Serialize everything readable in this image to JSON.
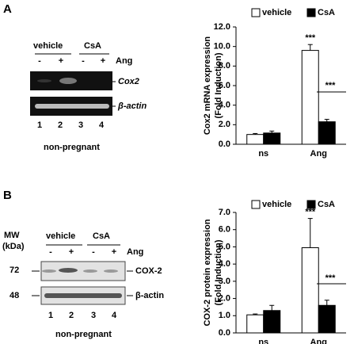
{
  "gel_panels": [
    {
      "label": "A",
      "groups": [
        "vehicle",
        "CsA"
      ],
      "signs": [
        "-",
        "+",
        "-",
        "+"
      ],
      "treatment": "Ang",
      "bands": [
        "Cox2",
        "β-actin"
      ],
      "lanes": [
        1,
        2,
        3,
        4
      ],
      "caption": "non-pregnant"
    },
    {
      "label": "B",
      "mw_label": [
        "MW",
        "(kDa)"
      ],
      "mw": [
        72,
        48
      ],
      "groups": [
        "vehicle",
        "CsA"
      ],
      "signs": [
        "-",
        "+",
        "-",
        "+"
      ],
      "treatment": "Ang",
      "bands": [
        "COX-2",
        "β-actin"
      ],
      "lanes": [
        1,
        2,
        3,
        4
      ],
      "caption": "non-pregnant"
    }
  ],
  "chart_data": [
    {
      "type": "bar",
      "ylabel": [
        "Cox2 mRNA expression",
        "(Fold Induction)"
      ],
      "categories": [
        "ns",
        "Ang"
      ],
      "series": [
        {
          "name": "vehicle",
          "color": "#ffffff",
          "values": [
            1.0,
            9.6
          ],
          "errors": [
            0.1,
            0.6
          ]
        },
        {
          "name": "CsA",
          "color": "#000000",
          "values": [
            1.15,
            2.3
          ],
          "errors": [
            0.2,
            0.25
          ]
        }
      ],
      "ylim": [
        0,
        12
      ],
      "yticks": [
        {
          "value": 0,
          "label": "0.0"
        },
        {
          "value": 2,
          "label": "2.0"
        },
        {
          "value": 4,
          "label": "4.0"
        },
        {
          "value": 6,
          "label": "6.0"
        },
        {
          "value": 8,
          "label": "8.0"
        },
        {
          "value": 10,
          "label": "10.0"
        },
        {
          "value": 12,
          "label": "12.0"
        }
      ],
      "annotations": [
        "***",
        "***"
      ]
    },
    {
      "type": "bar",
      "ylabel": [
        "COX-2 protein expression",
        "(Fold Induction)"
      ],
      "categories": [
        "ns",
        "Ang"
      ],
      "series": [
        {
          "name": "vehicle",
          "color": "#ffffff",
          "values": [
            1.05,
            4.95
          ],
          "errors": [
            0.05,
            1.7
          ]
        },
        {
          "name": "CsA",
          "color": "#000000",
          "values": [
            1.3,
            1.6
          ],
          "errors": [
            0.3,
            0.3
          ]
        }
      ],
      "ylim": [
        0,
        7
      ],
      "yticks": [
        {
          "value": 0,
          "label": "0.0"
        },
        {
          "value": 1,
          "label": "1.0"
        },
        {
          "value": 2,
          "label": "2.0"
        },
        {
          "value": 3,
          "label": "3.0"
        },
        {
          "value": 4,
          "label": "4.0"
        },
        {
          "value": 5,
          "label": "5.0"
        },
        {
          "value": 6,
          "label": "6.0"
        },
        {
          "value": 7,
          "label": "7.0"
        }
      ],
      "annotations": [
        "***",
        "***"
      ]
    }
  ]
}
